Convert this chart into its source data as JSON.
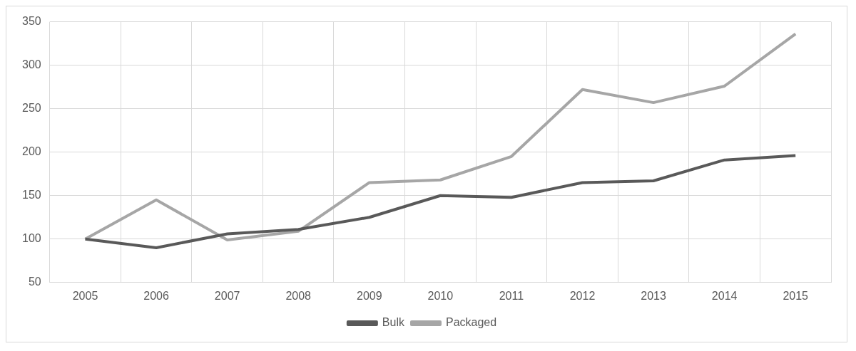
{
  "chart_data": {
    "type": "line",
    "categories": [
      "2005",
      "2006",
      "2007",
      "2008",
      "2009",
      "2010",
      "2011",
      "2012",
      "2013",
      "2014",
      "2015"
    ],
    "series": [
      {
        "name": "Bulk",
        "color": "#595959",
        "values": [
          100,
          90,
          106,
          111,
          125,
          150,
          148,
          165,
          167,
          191,
          196
        ]
      },
      {
        "name": "Packaged",
        "color": "#a6a6a6",
        "values": [
          100,
          145,
          99,
          109,
          165,
          168,
          195,
          272,
          257,
          276,
          336
        ]
      }
    ],
    "ylim": [
      50,
      350
    ],
    "yticks": [
      50,
      100,
      150,
      200,
      250,
      300,
      350
    ],
    "grid": true,
    "legend": "bottom",
    "marker": "none",
    "line_style": "solid"
  }
}
